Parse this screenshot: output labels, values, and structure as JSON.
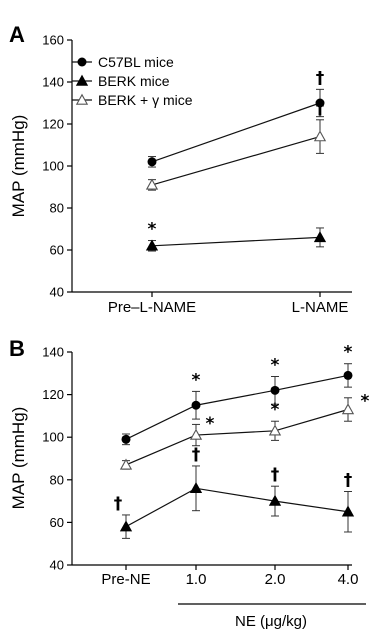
{
  "chart_data": [
    {
      "panel": "A",
      "type": "line",
      "ylabel": "MAP (mmHg)",
      "ylim": [
        40,
        160
      ],
      "yticks": [
        "40",
        "60",
        "80",
        "100",
        "120",
        "140",
        "160"
      ],
      "categories": [
        "Pre–L-NAME",
        "L-NAME"
      ],
      "series": [
        {
          "name": "C57BL mice",
          "marker": "filled-circle",
          "values": [
            102,
            130
          ],
          "errors": [
            2.5,
            6.5
          ],
          "marks": [
            "",
            "†"
          ]
        },
        {
          "name": "BERK mice",
          "marker": "filled-triangle",
          "values": [
            62,
            66
          ],
          "errors": [
            2.5,
            4.5
          ],
          "marks": [
            "*",
            ""
          ]
        },
        {
          "name": "BERK + γ mice",
          "marker": "open-triangle",
          "values": [
            91,
            114
          ],
          "errors": [
            2.5,
            8
          ],
          "marks": [
            "",
            "†"
          ]
        }
      ]
    },
    {
      "panel": "B",
      "type": "line",
      "ylabel": "MAP (mmHg)",
      "xlabel": "NE (μg/kg)",
      "ylim": [
        40,
        140
      ],
      "yticks": [
        "40",
        "60",
        "80",
        "100",
        "120",
        "140"
      ],
      "categories": [
        "Pre-NE",
        "1.0",
        "2.0",
        "4.0"
      ],
      "series": [
        {
          "name": "C57BL mice",
          "marker": "filled-circle",
          "values": [
            99,
            115,
            122,
            129
          ],
          "errors": [
            2.5,
            6.5,
            6.5,
            5.5
          ],
          "marks": [
            "",
            "*",
            "*",
            "*"
          ]
        },
        {
          "name": "BERK + γ mice",
          "marker": "open-triangle",
          "values": [
            87,
            101,
            103,
            113
          ],
          "errors": [
            2,
            5,
            4.5,
            5.5
          ],
          "marks": [
            "",
            "*",
            "*",
            "*"
          ]
        },
        {
          "name": "BERK mice",
          "marker": "filled-triangle",
          "values": [
            58,
            76,
            70,
            65
          ],
          "errors": [
            5.5,
            10.5,
            7,
            9.5
          ],
          "marks": [
            "†",
            "†",
            "†",
            "†"
          ]
        }
      ]
    }
  ]
}
